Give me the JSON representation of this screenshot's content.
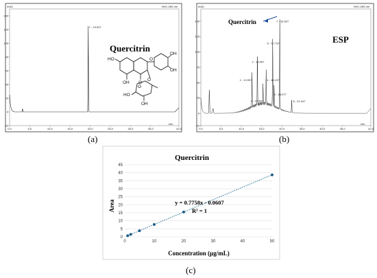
{
  "chart_data": [
    {
      "panel": "(a)",
      "type": "line",
      "title": "Quercitrin",
      "y_unit": "mAU",
      "wavelength": "WVL:265 nm",
      "x_unit": "min",
      "xlim": [
        0,
        42
      ],
      "ylim": [
        -20,
        150
      ],
      "x_ticks": [
        "0.0",
        "5.0",
        "10.0",
        "15.0",
        "20.0",
        "25.0",
        "30.0",
        "35.0",
        "42.0"
      ],
      "y_ticks": [
        "-20",
        "0",
        "20",
        "40",
        "60",
        "80",
        "100",
        "120",
        "140"
      ],
      "peaks": [
        {
          "label": "1 - 19.507",
          "rt": 19.507,
          "height": 125
        }
      ]
    },
    {
      "panel": "(b)",
      "type": "line",
      "title": "ESP",
      "y_unit": "mAU",
      "wavelength": "WVL:265 nm",
      "x_unit": "min",
      "xlim": [
        0,
        42
      ],
      "ylim": [
        -20,
        170
      ],
      "x_ticks": [
        "0.0",
        "5.0",
        "10.0",
        "15.0",
        "20.0",
        "25.0",
        "30.0",
        "35.0",
        "42.0"
      ],
      "y_ticks": [
        "-20",
        "0",
        "25",
        "50",
        "75",
        "100",
        "125",
        "150"
      ],
      "callout": "Quercitrin",
      "peaks": [
        {
          "label": "1 - 12.637",
          "rt": 12.637,
          "height": 55
        },
        {
          "label": "2 - 13.967",
          "rt": 13.967,
          "height": 80
        },
        {
          "label": "3 - 15.353",
          "rt": 15.353,
          "height": 30
        },
        {
          "label": "4 - 16.137",
          "rt": 16.137,
          "height": 55
        },
        {
          "label": "5 - 18.077",
          "rt": 18.077,
          "height": 35
        },
        {
          "label": "6 - 17.737",
          "rt": 17.737,
          "height": 110
        },
        {
          "label": "7 - 19.507",
          "rt": 19.507,
          "height": 145
        },
        {
          "label": "8 - 22.447",
          "rt": 22.447,
          "height": 20
        }
      ]
    },
    {
      "panel": "(c)",
      "type": "scatter",
      "title": "Quercitrin",
      "xlabel": "Concentration (µg/mL)",
      "ylabel": "Area",
      "xlim": [
        0,
        50
      ],
      "ylim": [
        0,
        45
      ],
      "x_ticks": [
        0,
        10,
        20,
        30,
        40,
        50
      ],
      "y_ticks": [
        0,
        5,
        10,
        15,
        20,
        25,
        30,
        35,
        40,
        45
      ],
      "points": [
        {
          "x": 1,
          "y": 0.7
        },
        {
          "x": 2,
          "y": 1.5
        },
        {
          "x": 5,
          "y": 3.8
        },
        {
          "x": 10,
          "y": 7.7
        },
        {
          "x": 20,
          "y": 15.5
        },
        {
          "x": 50,
          "y": 38.7
        }
      ],
      "equation": "y = 0.7758x - 0.0607",
      "r_squared": "R² = 1",
      "trendline": {
        "slope": 0.7758,
        "intercept": -0.0607
      }
    }
  ]
}
